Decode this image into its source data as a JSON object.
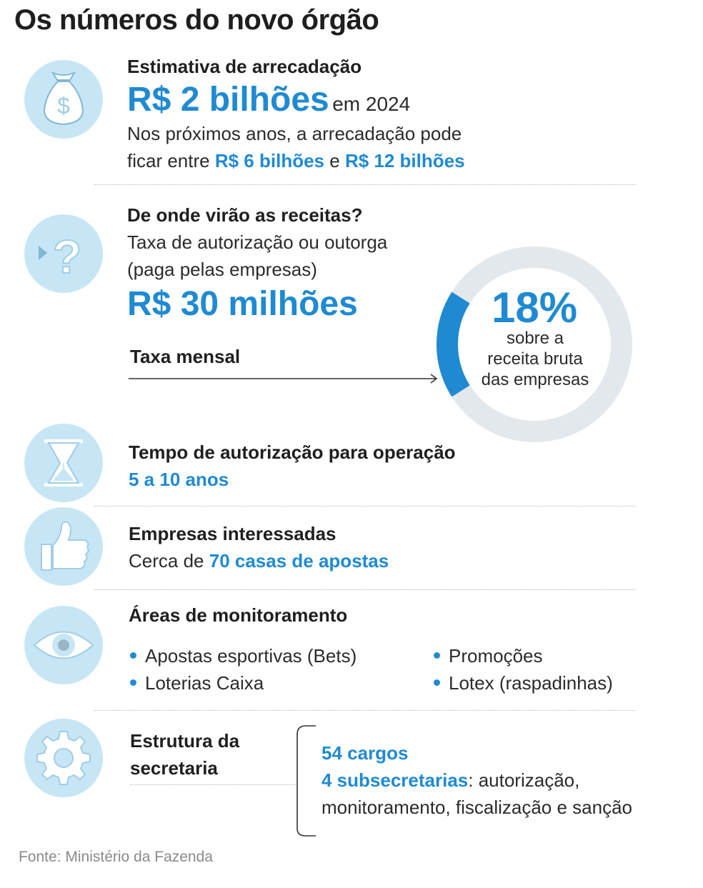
{
  "title": "Os números do novo órgão",
  "revenue": {
    "heading": "Estimativa de arrecadação",
    "amount": "R$ 2 bilhões",
    "year": "em 2024",
    "line1": "Nos próximos anos, a arrecadação pode",
    "line2_prefix": "ficar entre",
    "low": "R$ 6 bilhões",
    "conj": "e",
    "high": "R$ 12 bilhões"
  },
  "sources": {
    "heading": "De onde virão as receitas?",
    "line1": "Taxa de autorização ou outorga",
    "line2": "(paga pelas empresas)",
    "amount": "R$ 30 milhões",
    "fee_label": "Taxa mensal",
    "donut": {
      "percent": "18%",
      "value": 18,
      "caption1": "sobre a",
      "caption2": "receita bruta",
      "caption3": "das empresas"
    }
  },
  "time": {
    "heading": "Tempo de autorização para operação",
    "value": "5 a 10 anos"
  },
  "companies": {
    "heading": "Empresas interessadas",
    "prefix": "Cerca de",
    "value": "70 casas de apostas"
  },
  "monitoring": {
    "heading": "Áreas de monitoramento",
    "items": [
      "Apostas esportivas (Bets)",
      "Promoções",
      "Loterias Caixa",
      "Lotex (raspadinhas)"
    ]
  },
  "structure": {
    "heading_line1": "Estrutura da",
    "heading_line2": "secretaria",
    "positions": "54 cargos",
    "subsecretariats": "4 subsecretarias",
    "detail_line1": ": autorização,",
    "detail_line2": "monitoramento, fiscalização e sanção"
  },
  "source": "Fonte: Ministério da Fazenda",
  "colors": {
    "accent": "#1f8ad2",
    "icon_bg": "#c7e6f5",
    "ring": "#e3e8ec"
  },
  "icons": [
    "money-bag-icon",
    "question-icon",
    "hourglass-icon",
    "thumbs-up-icon",
    "eye-icon",
    "gear-icon"
  ]
}
